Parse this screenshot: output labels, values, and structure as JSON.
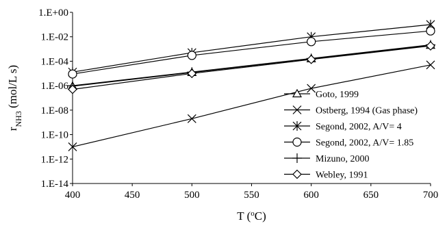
{
  "chart_data": {
    "type": "line",
    "xlabel": "T (°C)",
    "ylabel": "r_NH3 (mol/L s)",
    "x": [
      400,
      500,
      600,
      700
    ],
    "xlim": [
      400,
      700
    ],
    "ylim": [
      1e-14,
      1
    ],
    "yscale": "log",
    "x_ticks": [
      "400",
      "450",
      "500",
      "550",
      "600",
      "650",
      "700"
    ],
    "y_ticks": [
      "1.E-14",
      "1.E-12",
      "1.E-10",
      "1.E-08",
      "1.E-06",
      "1.E-04",
      "1.E-02",
      "1.E+00"
    ],
    "grid": false,
    "legend_position": "bottom-right",
    "line_color": "#000000",
    "series": [
      {
        "name": "Goto, 1999",
        "marker": "triangle",
        "values": [
          9e-07,
          1.2e-05,
          0.00016,
          0.002
        ]
      },
      {
        "name": "Ostberg, 1994 (Gas phase)",
        "marker": "x",
        "values": [
          1e-11,
          2e-09,
          6e-07,
          5e-05
        ]
      },
      {
        "name": "Segond, 2002, A/V= 4",
        "marker": "asterisk",
        "values": [
          1.3e-05,
          0.0005,
          0.01,
          0.1
        ]
      },
      {
        "name": "Segond, 2002, A/V= 1.85",
        "marker": "circle",
        "values": [
          9e-06,
          0.0003,
          0.004,
          0.03
        ]
      },
      {
        "name": "Mizuno, 2000",
        "marker": "plus",
        "values": [
          1e-06,
          1.3e-05,
          0.00017,
          0.0022
        ]
      },
      {
        "name": "Webley, 1991",
        "marker": "diamond",
        "values": [
          5e-07,
          1e-05,
          0.00014,
          0.0018
        ]
      }
    ]
  }
}
